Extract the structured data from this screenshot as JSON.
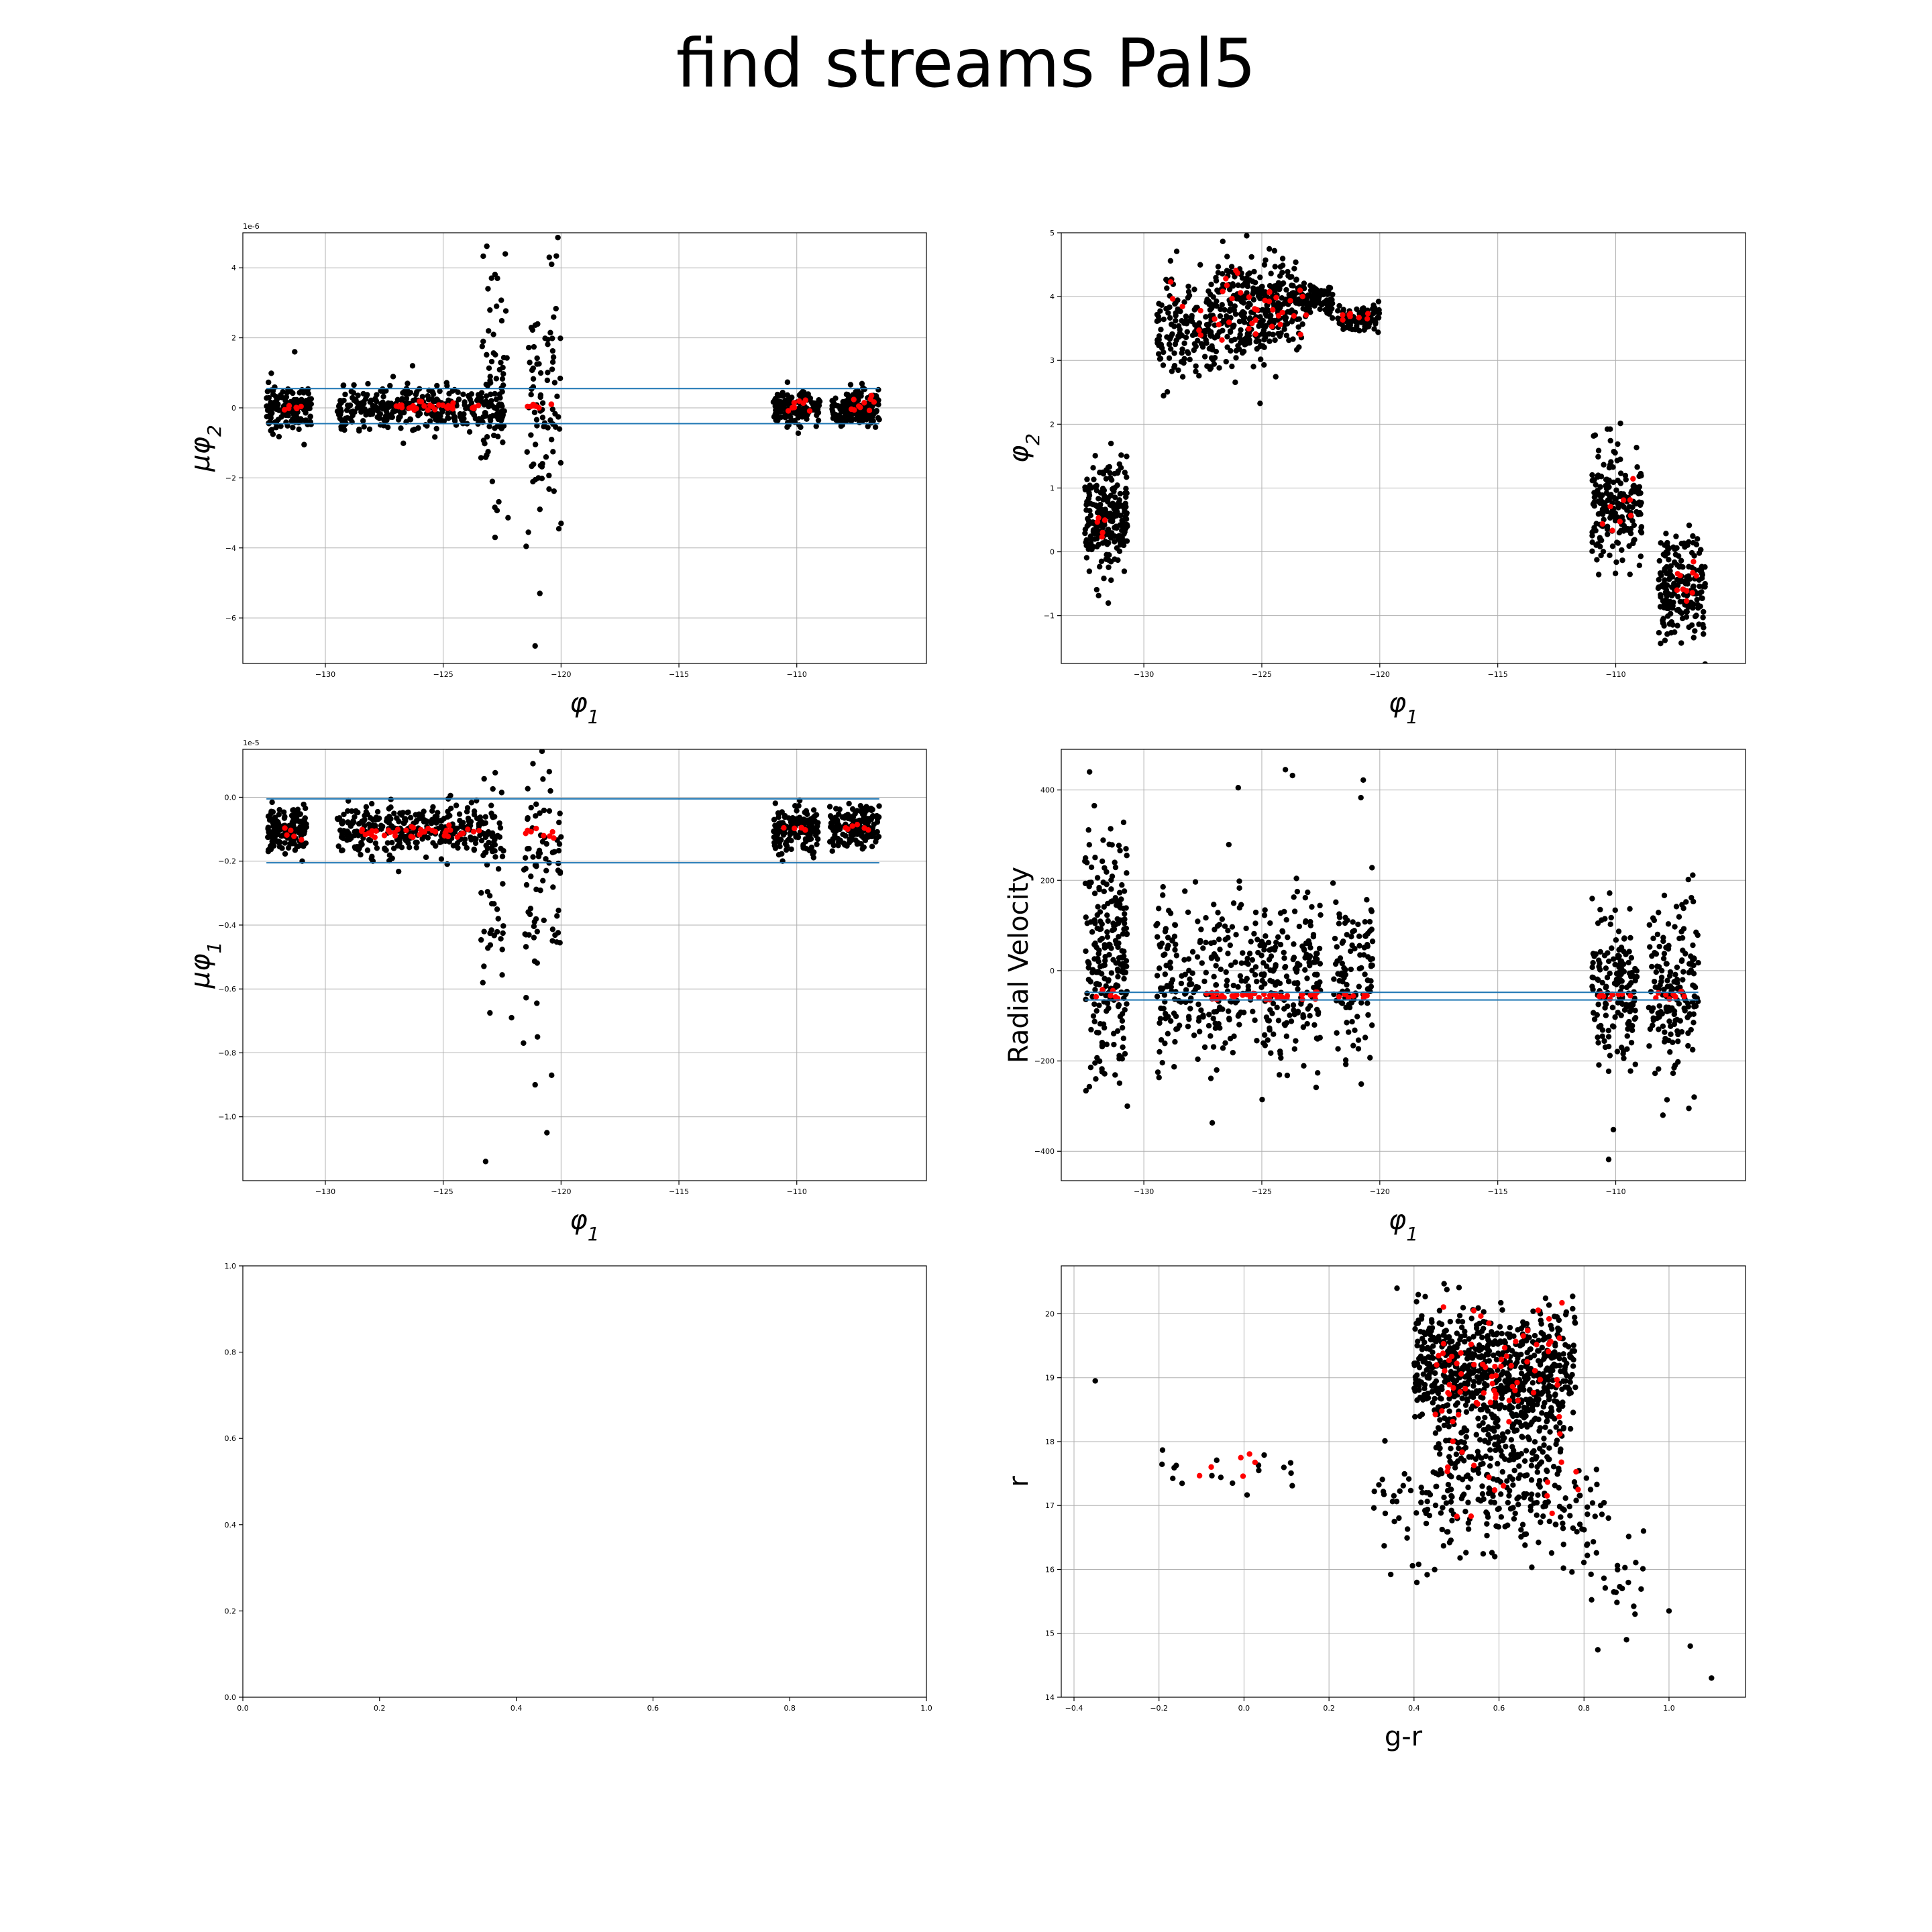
{
  "figure": {
    "title": "find streams Pal5"
  },
  "colors": {
    "stream": "#ff0000",
    "field": "#000000",
    "cut_line": "#1f77b4",
    "grid": "#b0b0b0",
    "axes": "#000000"
  },
  "chart_data": [
    {
      "id": "mu-phi2-vs-phi1",
      "type": "scatter",
      "xlabel": "φ1",
      "ylabel": "μφ2",
      "offset_text": "1e-6",
      "xlim": [
        -133.5,
        -104.5
      ],
      "ylim": [
        -7.3e-06,
        5e-06
      ],
      "xticks": [
        -130,
        -125,
        -120,
        -115,
        -110
      ],
      "yticks": [
        -6e-06,
        -4e-06,
        -2e-06,
        0,
        2e-06,
        4e-06
      ],
      "ytick_labels": [
        "−6",
        "−4",
        "−2",
        "0",
        "2",
        "4"
      ],
      "grid": true,
      "hlines": [
        5.5e-07,
        -4.5e-07
      ],
      "hline_span": [
        -132.5,
        -106.5
      ],
      "field_clumps": [
        {
          "x": [
            -132.5,
            -130.6
          ],
          "y_center": 0.0,
          "y_sigma": 3e-07,
          "n": 150
        },
        {
          "x": [
            -129.5,
            -122.5
          ],
          "y_center": 0.0,
          "y_sigma": 3e-07,
          "n": 330
        },
        {
          "x": [
            -123.4,
            -122.2
          ],
          "y_center": 0.0,
          "y_sigma": 1.8e-06,
          "n": 70
        },
        {
          "x": [
            -121.5,
            -120.0
          ],
          "y_center": 0.0,
          "y_sigma": 1.8e-06,
          "n": 80
        },
        {
          "x": [
            -111.0,
            -109.0
          ],
          "y_center": 0.0,
          "y_sigma": 2.5e-07,
          "n": 150
        },
        {
          "x": [
            -108.5,
            -106.5
          ],
          "y_center": 0.0,
          "y_sigma": 2.5e-07,
          "n": 150
        }
      ],
      "stream_clumps": [
        {
          "x": [
            -131.8,
            -131.0
          ],
          "y_center": 5e-08,
          "y_sigma": 5e-08,
          "n": 6
        },
        {
          "x": [
            -127.0,
            -123.0
          ],
          "y_center": 3e-08,
          "y_sigma": 5e-08,
          "n": 30
        },
        {
          "x": [
            -121.6,
            -120.3
          ],
          "y_center": 5e-08,
          "y_sigma": 5e-08,
          "n": 8
        },
        {
          "x": [
            -110.5,
            -109.4
          ],
          "y_center": 1e-07,
          "y_sigma": 1e-07,
          "n": 8
        },
        {
          "x": [
            -107.8,
            -106.7
          ],
          "y_center": 1.5e-07,
          "y_sigma": 1.5e-07,
          "n": 10
        }
      ],
      "outliers": [
        [
          -120.5,
          4.3e-06
        ],
        [
          -120.4,
          4.1e-06
        ],
        [
          -121.1,
          -6.8e-06
        ],
        [
          -120.9,
          -5.3e-06
        ],
        [
          -122.7,
          3.7e-06
        ],
        [
          -123.1,
          3.4e-06
        ],
        [
          -122.8,
          -3.7e-06
        ],
        [
          -120.0,
          -3.3e-06
        ],
        [
          -131.3,
          1.6e-06
        ],
        [
          -126.3,
          1.2e-06
        ]
      ]
    },
    {
      "id": "phi2-vs-phi1",
      "type": "scatter",
      "xlabel": "φ1",
      "ylabel": "φ2",
      "xlim": [
        -133.5,
        -104.5
      ],
      "ylim": [
        -1.75,
        5.0
      ],
      "xticks": [
        -130,
        -125,
        -120,
        -115,
        -110
      ],
      "yticks": [
        -1,
        0,
        1,
        2,
        3,
        4,
        5
      ],
      "ytick_labels": [
        "−1",
        "0",
        "1",
        "2",
        "3",
        "4",
        "5"
      ],
      "grid": true,
      "field_clumps": [
        {
          "x": [
            -132.5,
            -130.7
          ],
          "y_center": 0.55,
          "y_sigma": 0.45,
          "n": 220
        },
        {
          "x": [
            -129.5,
            -127.0
          ],
          "y_center": 3.5,
          "y_sigma": 0.45,
          "n": 150
        },
        {
          "x": [
            -127.2,
            -124.8
          ],
          "y_center": 3.75,
          "y_sigma": 0.45,
          "n": 200
        },
        {
          "x": [
            -125.0,
            -123.2
          ],
          "y_center": 3.85,
          "y_sigma": 0.35,
          "n": 150
        },
        {
          "x": [
            -123.3,
            -122.0
          ],
          "y_center": 3.95,
          "y_sigma": 0.12,
          "n": 80
        },
        {
          "x": [
            -121.8,
            -120.0
          ],
          "y_center": 3.65,
          "y_sigma": 0.1,
          "n": 100
        },
        {
          "x": [
            -111.0,
            -108.9
          ],
          "y_center": 0.7,
          "y_sigma": 0.45,
          "n": 200
        },
        {
          "x": [
            -108.2,
            -106.2
          ],
          "y_center": -0.55,
          "y_sigma": 0.45,
          "n": 200
        }
      ],
      "stream_clumps": [
        {
          "x": [
            -132.0,
            -131.0
          ],
          "y_center": 0.4,
          "y_sigma": 0.2,
          "n": 5
        },
        {
          "x": [
            -129.0,
            -127.5
          ],
          "y_center": 3.5,
          "y_sigma": 0.3,
          "n": 6
        },
        {
          "x": [
            -127.0,
            -123.0
          ],
          "y_center": 3.8,
          "y_sigma": 0.3,
          "n": 35
        },
        {
          "x": [
            -121.8,
            -120.5
          ],
          "y_center": 3.7,
          "y_sigma": 0.08,
          "n": 8
        },
        {
          "x": [
            -110.8,
            -109.2
          ],
          "y_center": 0.8,
          "y_sigma": 0.3,
          "n": 8
        },
        {
          "x": [
            -107.8,
            -106.5
          ],
          "y_center": -0.5,
          "y_sigma": 0.3,
          "n": 10
        }
      ],
      "outliers": []
    },
    {
      "id": "mu-phi1-vs-phi1",
      "type": "scatter",
      "xlabel": "φ1",
      "ylabel": "μφ1",
      "offset_text": "1e-5",
      "xlim": [
        -133.5,
        -104.5
      ],
      "ylim": [
        -1.2e-05,
        1.5e-06
      ],
      "xticks": [
        -130,
        -125,
        -120,
        -115,
        -110
      ],
      "yticks": [
        -1e-05,
        -8e-06,
        -6e-06,
        -4e-06,
        -2e-06,
        0
      ],
      "ytick_labels": [
        "−1.0",
        "−0.8",
        "−0.6",
        "−0.4",
        "−0.2",
        "0.0"
      ],
      "grid": true,
      "hlines": [
        -5e-08,
        -2.05e-06
      ],
      "hline_span": [
        -132.5,
        -106.5
      ],
      "field_clumps": [
        {
          "x": [
            -132.5,
            -130.8
          ],
          "y_center": -1e-06,
          "y_sigma": 3.5e-07,
          "n": 170
        },
        {
          "x": [
            -129.5,
            -122.8
          ],
          "y_center": -1e-06,
          "y_sigma": 4e-07,
          "n": 330
        },
        {
          "x": [
            -123.4,
            -122.4
          ],
          "y_center": -2.5e-06,
          "y_sigma": 1.5e-06,
          "n": 50
        },
        {
          "x": [
            -121.6,
            -120.0
          ],
          "y_center": -2.5e-06,
          "y_sigma": 2e-06,
          "n": 80
        },
        {
          "x": [
            -111.0,
            -109.1
          ],
          "y_center": -1e-06,
          "y_sigma": 3.5e-07,
          "n": 150
        },
        {
          "x": [
            -108.6,
            -106.5
          ],
          "y_center": -1e-06,
          "y_sigma": 3.5e-07,
          "n": 160
        }
      ],
      "stream_clumps": [
        {
          "x": [
            -131.8,
            -131.0
          ],
          "y_center": -1.1e-06,
          "y_sigma": 1e-07,
          "n": 5
        },
        {
          "x": [
            -128.5,
            -123.0
          ],
          "y_center": -1.1e-06,
          "y_sigma": 1e-07,
          "n": 40
        },
        {
          "x": [
            -121.6,
            -120.3
          ],
          "y_center": -1.1e-06,
          "y_sigma": 1e-07,
          "n": 8
        },
        {
          "x": [
            -110.6,
            -109.4
          ],
          "y_center": -1e-06,
          "y_sigma": 1e-07,
          "n": 6
        },
        {
          "x": [
            -108.0,
            -106.7
          ],
          "y_center": -1e-06,
          "y_sigma": 1e-07,
          "n": 6
        }
      ],
      "outliers": [
        [
          -123.2,
          -1.14e-05
        ],
        [
          -120.6,
          -1.05e-05
        ],
        [
          -121.1,
          -9e-06
        ],
        [
          -120.4,
          -8.7e-06
        ],
        [
          -121.0,
          -7.5e-06
        ],
        [
          -122.1,
          -6.9e-06
        ],
        [
          -120.5,
          8e-07
        ]
      ]
    },
    {
      "id": "rv-vs-phi1",
      "type": "scatter",
      "xlabel": "φ1",
      "ylabel": "Radial Velocity",
      "xlim": [
        -133.5,
        -104.5
      ],
      "ylim": [
        -465,
        490
      ],
      "xticks": [
        -130,
        -125,
        -120,
        -115,
        -110
      ],
      "yticks": [
        -400,
        -200,
        0,
        200,
        400
      ],
      "ytick_labels": [
        "−400",
        "−200",
        "0",
        "200",
        "400"
      ],
      "grid": true,
      "hlines": [
        -48,
        -65
      ],
      "hline_span": [
        -132.5,
        -106.5
      ],
      "field_clumps": [
        {
          "x": [
            -132.5,
            -130.7
          ],
          "y_center": 20,
          "y_sigma": 130,
          "n": 230
        },
        {
          "x": [
            -129.5,
            -122.5
          ],
          "y_center": -15,
          "y_sigma": 90,
          "n": 420
        },
        {
          "x": [
            -122.0,
            -120.3
          ],
          "y_center": -20,
          "y_sigma": 80,
          "n": 110
        },
        {
          "x": [
            -111.0,
            -109.1
          ],
          "y_center": -40,
          "y_sigma": 90,
          "n": 160
        },
        {
          "x": [
            -108.6,
            -106.5
          ],
          "y_center": -40,
          "y_sigma": 90,
          "n": 170
        }
      ],
      "stream_clumps": [
        {
          "x": [
            -132.3,
            -131.0
          ],
          "y_center": -55,
          "y_sigma": 6,
          "n": 6
        },
        {
          "x": [
            -127.5,
            -122.5
          ],
          "y_center": -57,
          "y_sigma": 5,
          "n": 45
        },
        {
          "x": [
            -121.8,
            -120.4
          ],
          "y_center": -56,
          "y_sigma": 5,
          "n": 8
        },
        {
          "x": [
            -110.8,
            -109.2
          ],
          "y_center": -55,
          "y_sigma": 5,
          "n": 8
        },
        {
          "x": [
            -108.5,
            -106.6
          ],
          "y_center": -57,
          "y_sigma": 5,
          "n": 8
        }
      ],
      "outliers": [
        [
          -132.3,
          440
        ],
        [
          -124.0,
          445
        ],
        [
          -123.7,
          432
        ],
        [
          -120.7,
          422
        ],
        [
          -120.8,
          383
        ],
        [
          -126.0,
          405
        ],
        [
          -110.3,
          -418
        ],
        [
          -110.1,
          -352
        ],
        [
          -127.1,
          -337
        ],
        [
          -108.0,
          -320
        ],
        [
          -106.9,
          -305
        ],
        [
          -130.7,
          -300
        ]
      ]
    },
    {
      "id": "empty-axes",
      "type": "scatter",
      "xlabel": "",
      "ylabel": "",
      "xlim": [
        0,
        1
      ],
      "ylim": [
        0,
        1
      ],
      "xticks": [
        0,
        0.2,
        0.4,
        0.6,
        0.8,
        1.0
      ],
      "yticks": [
        0,
        0.2,
        0.4,
        0.6,
        0.8,
        1.0
      ],
      "xtick_labels": [
        "0.0",
        "0.2",
        "0.4",
        "0.6",
        "0.8",
        "1.0"
      ],
      "ytick_labels": [
        "0.0",
        "0.2",
        "0.4",
        "0.6",
        "0.8",
        "1.0"
      ],
      "grid": false,
      "field_clumps": [],
      "stream_clumps": [],
      "outliers": []
    },
    {
      "id": "r-vs-g-r",
      "type": "scatter",
      "xlabel": "g-r",
      "ylabel": "r",
      "xlim": [
        -0.43,
        1.18
      ],
      "ylim": [
        14.0,
        20.75
      ],
      "xticks": [
        -0.4,
        -0.2,
        0.0,
        0.2,
        0.4,
        0.6,
        0.8,
        1.0
      ],
      "yticks": [
        14,
        15,
        16,
        17,
        18,
        19,
        20
      ],
      "xtick_labels": [
        "−0.4",
        "−0.2",
        "0.0",
        "0.2",
        "0.4",
        "0.6",
        "0.8",
        "1.0"
      ],
      "ytick_labels": [
        "14",
        "15",
        "16",
        "17",
        "18",
        "19",
        "20"
      ],
      "grid": true,
      "field_clumps": [
        {
          "x": [
            0.4,
            0.78
          ],
          "y_center": 19.2,
          "y_sigma": 0.45,
          "n": 650
        },
        {
          "x": [
            0.45,
            0.75
          ],
          "y_center": 18.0,
          "y_sigma": 0.5,
          "n": 250
        },
        {
          "x": [
            0.3,
            0.85
          ],
          "y_center": 17.0,
          "y_sigma": 0.45,
          "n": 180
        },
        {
          "x": [
            0.75,
            0.95
          ],
          "y_center": 15.8,
          "y_sigma": 0.5,
          "n": 25
        },
        {
          "x": [
            -0.2,
            0.12
          ],
          "y_center": 17.5,
          "y_sigma": 0.2,
          "n": 18
        }
      ],
      "stream_clumps": [
        {
          "x": [
            0.45,
            0.75
          ],
          "y_center": 19.1,
          "y_sigma": 0.5,
          "n": 70
        },
        {
          "x": [
            0.4,
            0.8
          ],
          "y_center": 17.3,
          "y_sigma": 0.4,
          "n": 15
        },
        {
          "x": [
            -0.12,
            0.05
          ],
          "y_center": 17.65,
          "y_sigma": 0.2,
          "n": 6
        }
      ],
      "outliers": [
        [
          -0.35,
          18.95
        ],
        [
          1.1,
          14.3
        ],
        [
          1.05,
          14.8
        ],
        [
          1.0,
          15.35
        ],
        [
          0.36,
          20.4
        ],
        [
          0.41,
          20.3
        ],
        [
          0.9,
          14.9
        ],
        [
          0.59,
          16.2
        ],
        [
          0.94,
          16.6
        ],
        [
          0.92,
          15.3
        ]
      ]
    }
  ]
}
